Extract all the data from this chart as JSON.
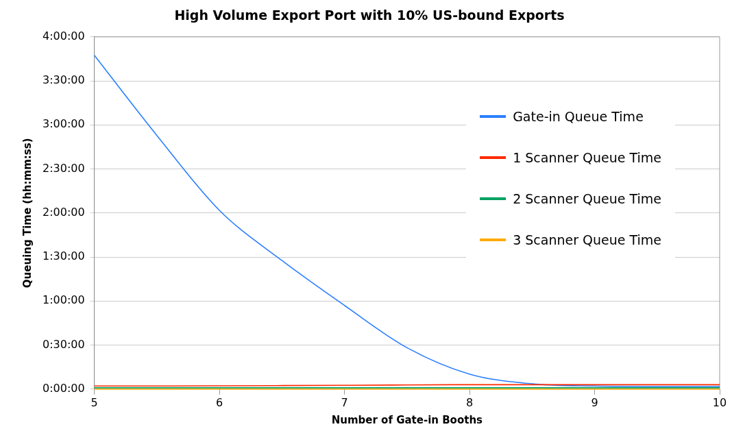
{
  "chart_data": {
    "type": "line",
    "title": "High Volume Export Port with 10% US-bound Exports",
    "xlabel": "Number of Gate-in Booths",
    "ylabel": "Queuing Time (hh:mm:ss)",
    "x": [
      5,
      5.5,
      6,
      6.5,
      7,
      7.5,
      8,
      8.5,
      9,
      9.5,
      10
    ],
    "series": [
      {
        "name": "Gate-in Queue Time",
        "color": "#2a7fff",
        "values": [
          3.79,
          2.88,
          2.03,
          1.46,
          0.95,
          0.47,
          0.17,
          0.06,
          0.035,
          0.03,
          0.03
        ]
      },
      {
        "name": "1 Scanner Queue Time",
        "color": "#ff2a00",
        "values": [
          0.035,
          0.035,
          0.037,
          0.04,
          0.043,
          0.047,
          0.05,
          0.05,
          0.05,
          0.05,
          0.05
        ]
      },
      {
        "name": "2 Scanner Queue Time",
        "color": "#00a060",
        "values": [
          0.015,
          0.015,
          0.015,
          0.015,
          0.015,
          0.015,
          0.015,
          0.015,
          0.015,
          0.015,
          0.015
        ]
      },
      {
        "name": "3 Scanner Queue Time",
        "color": "#ffaa00",
        "values": [
          0,
          0,
          0,
          0,
          0,
          0,
          0,
          0,
          0,
          0,
          0
        ]
      }
    ],
    "xlim": [
      5,
      10
    ],
    "xticks": [
      5,
      6,
      7,
      8,
      9,
      10
    ],
    "ylim": [
      0,
      4
    ],
    "yticks": [
      {
        "value": 0,
        "label": "0:00:00"
      },
      {
        "value": 0.5,
        "label": "0:30:00"
      },
      {
        "value": 1,
        "label": "1:00:00"
      },
      {
        "value": 1.5,
        "label": "1:30:00"
      },
      {
        "value": 2,
        "label": "2:00:00"
      },
      {
        "value": 2.5,
        "label": "2:30:00"
      },
      {
        "value": 3,
        "label": "3:00:00"
      },
      {
        "value": 3.5,
        "label": "3:30:00"
      },
      {
        "value": 4,
        "label": "4:00:00"
      }
    ],
    "grid": "y",
    "legend": "top right",
    "marker": "none",
    "line_style": "solid"
  }
}
